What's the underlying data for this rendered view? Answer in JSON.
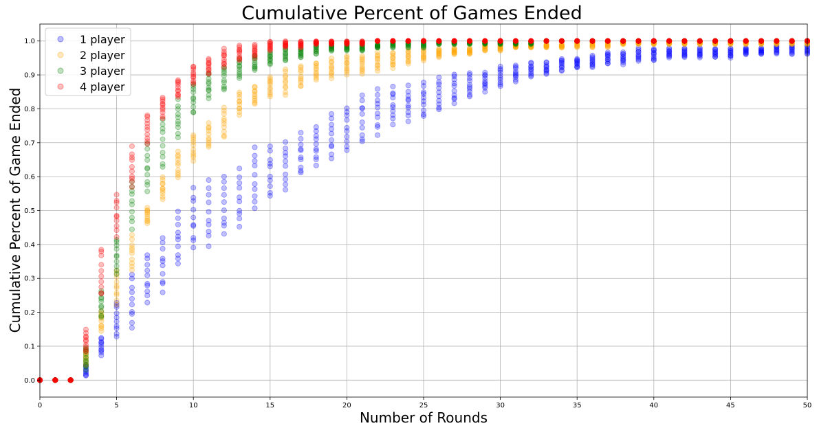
{
  "chart_data": {
    "type": "scatter",
    "title": "Cumulative Percent of Games Ended",
    "xlabel": "Number of Rounds",
    "ylabel": "Cumulative Percent of Game Ended",
    "xlim": [
      0,
      50
    ],
    "ylim": [
      -0.05,
      1.05
    ],
    "x_ticks": [
      0,
      5,
      10,
      15,
      20,
      25,
      30,
      35,
      40,
      45,
      50
    ],
    "y_ticks": [
      0.0,
      0.1,
      0.2,
      0.3,
      0.4,
      0.5,
      0.6,
      0.7,
      0.8,
      0.9,
      1.0
    ],
    "x_tick_labels": [
      "0",
      "5",
      "10",
      "15",
      "20",
      "25",
      "30",
      "35",
      "40",
      "45",
      "50"
    ],
    "y_tick_labels": [
      "0.0",
      "0.1",
      "0.2",
      "0.3",
      "0.4",
      "0.5",
      "0.6",
      "0.7",
      "0.8",
      "0.9",
      "1.0"
    ],
    "grid": true,
    "legend_position": "top-left",
    "x": [
      0,
      1,
      2,
      3,
      4,
      5,
      6,
      7,
      8,
      9,
      10,
      11,
      12,
      13,
      14,
      15,
      16,
      17,
      18,
      19,
      20,
      21,
      22,
      23,
      24,
      25,
      26,
      27,
      28,
      29,
      30,
      31,
      32,
      33,
      34,
      35,
      36,
      37,
      38,
      39,
      40,
      41,
      42,
      43,
      44,
      45,
      46,
      47,
      48,
      49,
      50
    ],
    "series": [
      {
        "name": "1 player",
        "color": "#0000ff",
        "alpha": 0.25,
        "min": [
          0,
          0,
          0,
          0.01,
          0.07,
          0.12,
          0.15,
          0.22,
          0.25,
          0.33,
          0.38,
          0.39,
          0.42,
          0.44,
          0.5,
          0.53,
          0.56,
          0.6,
          0.63,
          0.65,
          0.67,
          0.69,
          0.72,
          0.75,
          0.76,
          0.77,
          0.79,
          0.81,
          0.83,
          0.85,
          0.86,
          0.88,
          0.89,
          0.9,
          0.91,
          0.92,
          0.92,
          0.93,
          0.93,
          0.94,
          0.94,
          0.95,
          0.95,
          0.95,
          0.95,
          0.95,
          0.96,
          0.96,
          0.96,
          0.96,
          0.96
        ],
        "max": [
          0,
          0,
          0,
          0.05,
          0.13,
          0.24,
          0.32,
          0.38,
          0.43,
          0.5,
          0.57,
          0.59,
          0.61,
          0.63,
          0.69,
          0.7,
          0.71,
          0.73,
          0.75,
          0.79,
          0.81,
          0.85,
          0.86,
          0.87,
          0.87,
          0.88,
          0.9,
          0.91,
          0.91,
          0.91,
          0.93,
          0.93,
          0.94,
          0.94,
          0.95,
          0.95,
          0.96,
          0.97,
          0.97,
          0.98,
          0.98,
          0.98,
          0.98,
          0.98,
          0.98,
          0.98,
          0.98,
          0.98,
          0.99,
          0.99,
          0.99
        ]
      },
      {
        "name": "2 player",
        "color": "#ffa500",
        "alpha": 0.25,
        "min": [
          0,
          0,
          0,
          0.04,
          0.14,
          0.22,
          0.32,
          0.46,
          0.53,
          0.59,
          0.64,
          0.68,
          0.71,
          0.78,
          0.81,
          0.83,
          0.84,
          0.86,
          0.88,
          0.89,
          0.9,
          0.9,
          0.91,
          0.92,
          0.93,
          0.94,
          0.95,
          0.96,
          0.96,
          0.97,
          0.97,
          0.98,
          0.98,
          0.98,
          0.98,
          0.98,
          0.98,
          0.98,
          0.99,
          0.99,
          0.99,
          0.99,
          0.99,
          0.99,
          0.99,
          0.99,
          0.99,
          0.99,
          0.99,
          0.99,
          0.99
        ],
        "max": [
          0,
          0,
          0,
          0.09,
          0.21,
          0.33,
          0.43,
          0.51,
          0.6,
          0.68,
          0.73,
          0.76,
          0.81,
          0.85,
          0.87,
          0.9,
          0.92,
          0.93,
          0.94,
          0.95,
          0.96,
          0.96,
          0.97,
          0.97,
          0.98,
          0.98,
          0.98,
          0.98,
          0.98,
          0.99,
          0.99,
          0.99,
          0.99,
          0.99,
          0.99,
          1,
          1,
          1,
          1,
          1,
          1,
          1,
          1,
          1,
          1,
          1,
          1,
          1,
          1,
          1,
          1
        ]
      },
      {
        "name": "3 player",
        "color": "#008000",
        "alpha": 0.25,
        "min": [
          0,
          0,
          0,
          0.03,
          0.18,
          0.31,
          0.44,
          0.55,
          0.62,
          0.71,
          0.78,
          0.83,
          0.85,
          0.89,
          0.91,
          0.93,
          0.94,
          0.95,
          0.96,
          0.97,
          0.97,
          0.97,
          0.98,
          0.98,
          0.98,
          0.98,
          0.99,
          0.99,
          0.99,
          0.99,
          0.99,
          0.99,
          0.99,
          1,
          1,
          1,
          1,
          1,
          1,
          1,
          1,
          1,
          1,
          1,
          1,
          1,
          1,
          1,
          1,
          1,
          1
        ],
        "max": [
          0,
          0,
          0,
          0.1,
          0.27,
          0.42,
          0.6,
          0.7,
          0.78,
          0.83,
          0.88,
          0.91,
          0.93,
          0.95,
          0.96,
          0.97,
          0.98,
          0.98,
          0.99,
          0.99,
          0.99,
          0.99,
          0.99,
          1,
          1,
          1,
          1,
          1,
          1,
          1,
          1,
          1,
          1,
          1,
          1,
          1,
          1,
          1,
          1,
          1,
          1,
          1,
          1,
          1,
          1,
          1,
          1,
          1,
          1,
          1,
          1
        ]
      },
      {
        "name": "4 player",
        "color": "#ff0000",
        "alpha": 0.25,
        "min": [
          0,
          0,
          0,
          0.08,
          0.24,
          0.42,
          0.56,
          0.69,
          0.77,
          0.83,
          0.87,
          0.9,
          0.92,
          0.94,
          0.95,
          0.97,
          0.98,
          0.98,
          0.99,
          0.99,
          0.99,
          0.99,
          1,
          1,
          1,
          1,
          1,
          1,
          1,
          1,
          1,
          1,
          1,
          1,
          1,
          1,
          1,
          1,
          1,
          1,
          1,
          1,
          1,
          1,
          1,
          1,
          1,
          1,
          1,
          1,
          1
        ],
        "max": [
          0,
          0,
          0,
          0.15,
          0.4,
          0.55,
          0.69,
          0.79,
          0.84,
          0.89,
          0.93,
          0.95,
          0.98,
          0.99,
          0.99,
          1,
          1,
          1,
          1,
          1,
          1,
          1,
          1,
          1,
          1,
          1,
          1,
          1,
          1,
          1,
          1,
          1,
          1,
          1,
          1,
          1,
          1,
          1,
          1,
          1,
          1,
          1,
          1,
          1,
          1,
          1,
          1,
          1,
          1,
          1,
          1
        ]
      }
    ],
    "points_per_round": 10
  }
}
